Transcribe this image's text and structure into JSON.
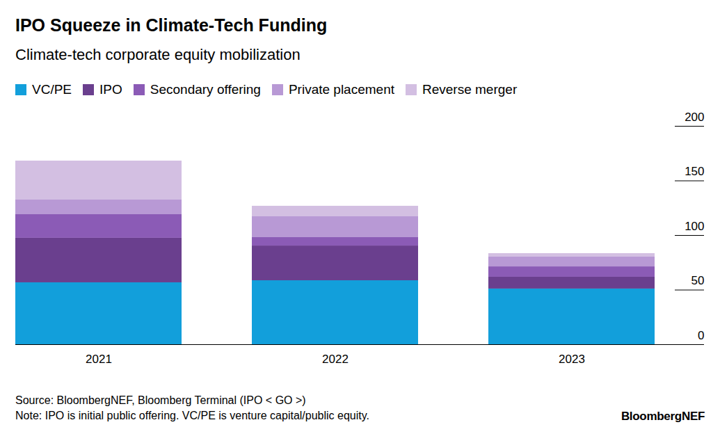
{
  "chart_data": {
    "type": "bar",
    "title": "IPO Squeeze in Climate-Tech Funding",
    "subtitle": "Climate-tech corporate equity mobilization",
    "source": "Source: BloombergNEF, Bloomberg Terminal (IPO < GO >)",
    "note": "Note: IPO is initial public offering. VC/PE is venture capital/public equity.",
    "credit": "BloombergNEF",
    "categories": [
      "2021",
      "2022",
      "2023"
    ],
    "series": [
      {
        "name": "VC/PE",
        "color": "#129fdb",
        "values": [
          56.7,
          58.6,
          51.0
        ]
      },
      {
        "name": "IPO",
        "color": "#6a3f8e",
        "values": [
          40.8,
          31.8,
          10.8
        ]
      },
      {
        "name": "Secondary offering",
        "color": "#8b5bb6",
        "values": [
          21.6,
          7.7,
          9.5
        ]
      },
      {
        "name": "Private placement",
        "color": "#b899d5",
        "values": [
          13.4,
          19.1,
          9.0
        ]
      },
      {
        "name": "Reverse merger",
        "color": "#d3bfe2",
        "values": [
          35.7,
          9.6,
          3.1
        ]
      }
    ],
    "stacked": true,
    "ylim": [
      0,
      200
    ],
    "yticks": [
      0,
      50,
      100,
      150,
      200
    ],
    "grid": false,
    "legend": "top-left"
  }
}
